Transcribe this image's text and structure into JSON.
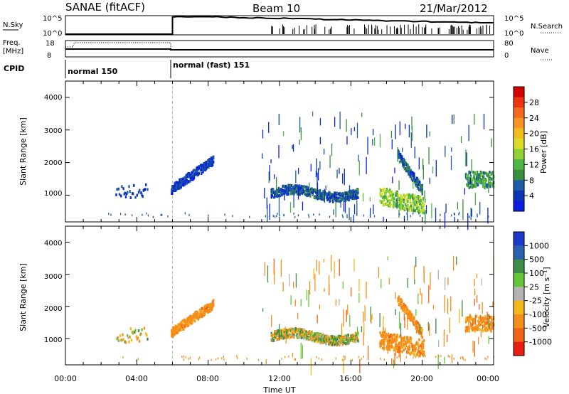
{
  "header": {
    "station": "SANAE (fitACF)",
    "beam": "Beam 10",
    "date": "21/Mar/2012"
  },
  "nsky_panel": {
    "label": "N.Sky",
    "right_label": "N.Search",
    "left_ticks": [
      "10^5",
      "10^0"
    ],
    "right_ticks": [
      "10^5",
      "10^0"
    ]
  },
  "freq_panel": {
    "label_line1": "Freq.",
    "label_line2": "[MHz]",
    "left_ticks": [
      "18",
      "8"
    ],
    "right_ticks": [
      "80",
      "0"
    ],
    "right_label": "Nave"
  },
  "cpid_panel": {
    "label": "CPID",
    "modes": [
      {
        "name": "normal 150",
        "start_hour": 0
      },
      {
        "name": "normal (fast) 151",
        "start_hour": 6
      }
    ]
  },
  "axes": {
    "ylabel": "Slant Range [km]",
    "yticks": [
      "1000",
      "2000",
      "3000",
      "4000"
    ],
    "ylim": [
      180,
      4500
    ],
    "xlabel": "Time UT",
    "xticks": [
      "00:00",
      "04:00",
      "08:00",
      "12:00",
      "16:00",
      "20:00",
      "00:00"
    ],
    "xlim_hours": [
      0,
      24
    ]
  },
  "power_colorbar": {
    "label": "Power [dB]",
    "ticks": [
      "28",
      "24",
      "20",
      "16",
      "12",
      "8",
      "4"
    ],
    "colors_top_to_bottom": [
      "#d40000",
      "#ee3311",
      "#f46a1c",
      "#f99324",
      "#f2bc1c",
      "#d9dc2a",
      "#8fd236",
      "#4fb646",
      "#3a8f3c",
      "#1c5ca8",
      "#0b36b8",
      "#0a1fe0"
    ]
  },
  "velocity_colorbar": {
    "label": "Velocity [m s⁻¹]",
    "ticks": [
      "1000",
      "500",
      "100",
      "25",
      "-25",
      "-100",
      "-500",
      "-1000"
    ],
    "colors_top_to_bottom": [
      "#1a3ac8",
      "#2a60b0",
      "#3d8c48",
      "#67c637",
      "#b4b4b4",
      "#f5b81b",
      "#f58f1c",
      "#f06418",
      "#e81e10"
    ]
  },
  "chart_data": {
    "type": "heatmap",
    "title": "SANAE (fitACF)   Beam 10   21/Mar/2012",
    "xlabel": "Time UT",
    "ylabel": "Slant Range [km]",
    "x_unit": "hours UT",
    "xlim": [
      0,
      24
    ],
    "ylim": [
      180,
      4500
    ],
    "series": [
      {
        "name": "Power [dB]",
        "clusters": [
          {
            "hours": [
              2.8,
              4.6
            ],
            "range_km": [
              850,
              1300
            ],
            "value": 4
          },
          {
            "hours": [
              5.9,
              8.3
            ],
            "range_km": [
              1100,
              2100
            ],
            "value": 4
          },
          {
            "hours": [
              11.5,
              16.4
            ],
            "range_km": [
              950,
              1200
            ],
            "value": 6
          },
          {
            "hours": [
              17.6,
              20.1
            ],
            "range_km": [
              500,
              1200
            ],
            "value": 14
          },
          {
            "hours": [
              18.6,
              20.0
            ],
            "range_km": [
              900,
              2300
            ],
            "value": 6
          },
          {
            "hours": [
              22.4,
              24.0
            ],
            "range_km": [
              1200,
              1700
            ],
            "value": 10
          }
        ]
      },
      {
        "name": "Velocity [m s⁻¹]",
        "clusters": [
          {
            "hours": [
              2.8,
              4.6
            ],
            "range_km": [
              850,
              1300
            ],
            "value": 0
          },
          {
            "hours": [
              5.9,
              8.3
            ],
            "range_km": [
              1100,
              2100
            ],
            "value": -300
          },
          {
            "hours": [
              11.5,
              16.4
            ],
            "range_km": [
              950,
              1200
            ],
            "value": 0
          },
          {
            "hours": [
              17.6,
              20.1
            ],
            "range_km": [
              500,
              1200
            ],
            "value": -300
          },
          {
            "hours": [
              18.6,
              20.0
            ],
            "range_km": [
              900,
              2300
            ],
            "value": -300
          },
          {
            "hours": [
              22.4,
              24.0
            ],
            "range_km": [
              1200,
              1700
            ],
            "value": -300
          }
        ]
      }
    ]
  }
}
